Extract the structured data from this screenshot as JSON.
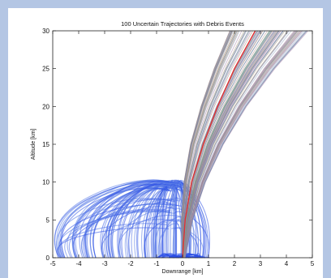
{
  "chart_data": {
    "type": "line",
    "title": "100 Uncertain Trajectories with Debris Events",
    "xlabel": "Downrange [km]",
    "ylabel": "Altitude [km]",
    "xlim": [
      -5,
      5
    ],
    "ylim": [
      0,
      30
    ],
    "xticks": [
      -5,
      -4,
      -3,
      -2,
      -1,
      0,
      1,
      2,
      3,
      4,
      5
    ],
    "yticks": [
      0,
      5,
      10,
      15,
      20,
      25,
      30
    ],
    "grid": false,
    "legend": "none",
    "series": [
      {
        "role": "nominal trajectory",
        "color": "#e03030",
        "points": [
          [
            0,
            0
          ],
          [
            0.1,
            5
          ],
          [
            0.35,
            10
          ],
          [
            0.8,
            15
          ],
          [
            1.35,
            20
          ],
          [
            2.0,
            25
          ],
          [
            2.8,
            30
          ]
        ]
      },
      {
        "role": "trajectory envelope (100 trajectories)",
        "color": "#7d7d95",
        "left_edge": [
          [
            0,
            0
          ],
          [
            -0.05,
            5
          ],
          [
            0.05,
            10
          ],
          [
            0.3,
            15
          ],
          [
            0.7,
            20
          ],
          [
            1.2,
            25
          ],
          [
            1.8,
            30
          ]
        ],
        "right_edge": [
          [
            0.1,
            0
          ],
          [
            0.4,
            5
          ],
          [
            0.9,
            10
          ],
          [
            1.6,
            15
          ],
          [
            2.5,
            20
          ],
          [
            3.6,
            25
          ],
          [
            4.9,
            30
          ]
        ]
      },
      {
        "role": "debris fall trajectories",
        "color": "#2c4fe6",
        "apex_altitude": [
          9.5,
          10.8
        ],
        "landing_range": [
          -5,
          1
        ]
      }
    ]
  }
}
